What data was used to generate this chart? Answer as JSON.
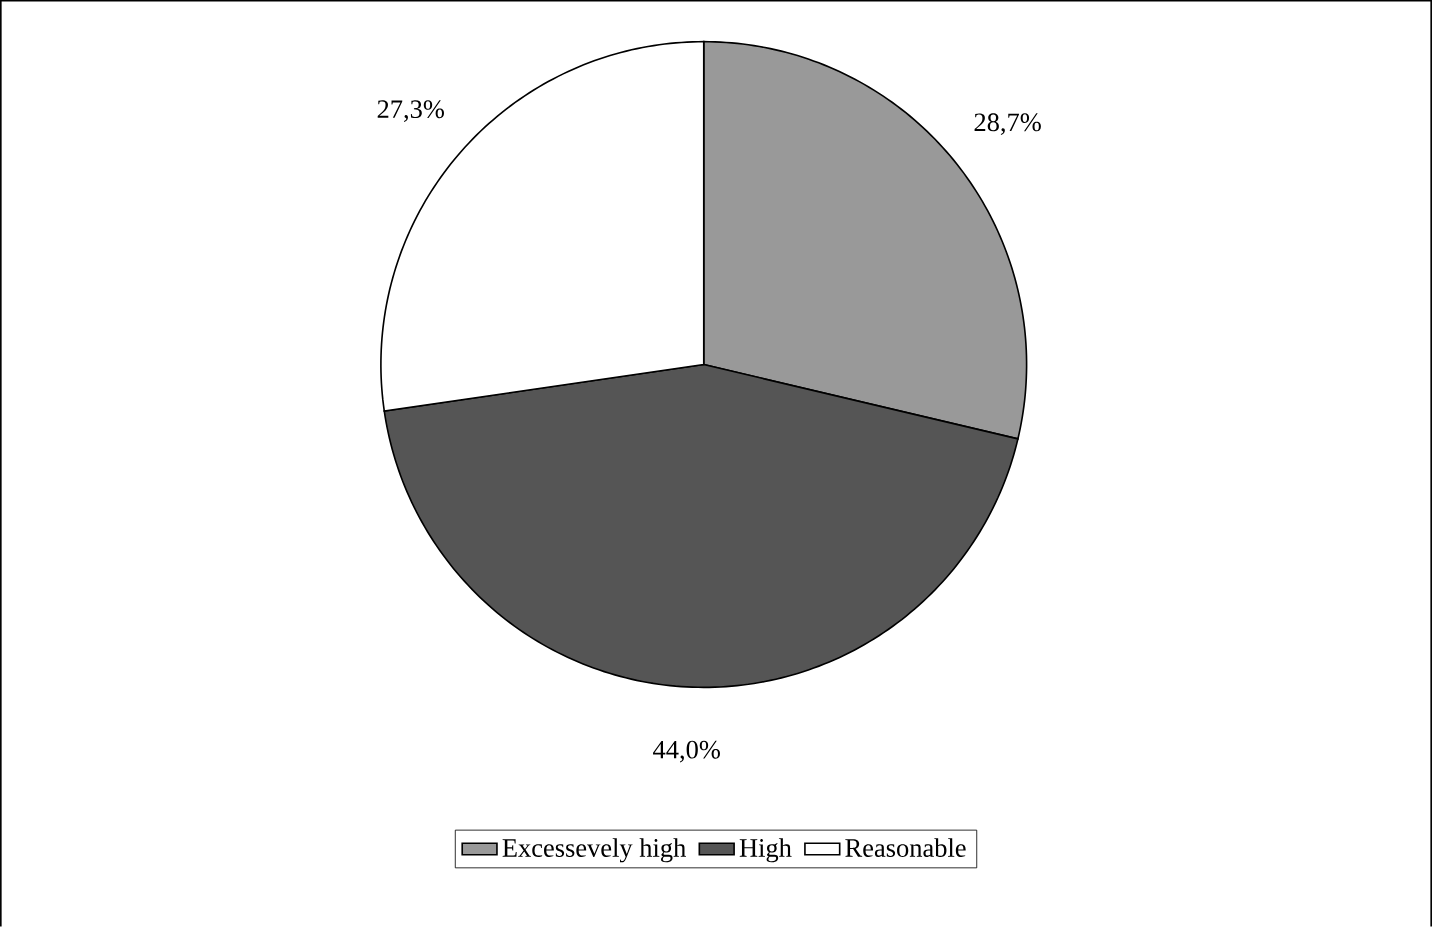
{
  "chart_data": {
    "type": "pie",
    "categories": [
      "Excessevely high",
      "High",
      "Reasonable"
    ],
    "values": [
      28.7,
      44.0,
      27.3
    ],
    "value_labels": [
      "28,7%",
      "44,0%",
      "27,3%"
    ],
    "colors": [
      "#999999",
      "#555555",
      "#ffffff"
    ],
    "legend": "bottom"
  }
}
